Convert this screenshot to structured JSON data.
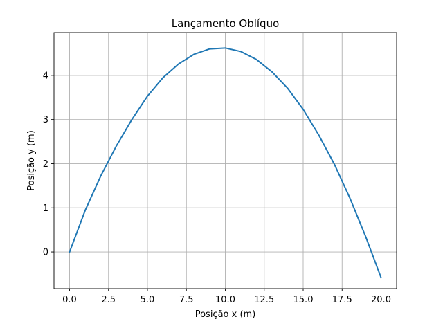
{
  "chart_data": {
    "type": "line",
    "title": "Lançamento Oblíquo",
    "xlabel": "Posição x (m)",
    "ylabel": "Posição y (m)",
    "xlim": [
      -1.0,
      21.0
    ],
    "ylim": [
      -0.83,
      4.97
    ],
    "xticks": [
      0.0,
      2.5,
      5.0,
      7.5,
      10.0,
      12.5,
      15.0,
      17.5,
      20.0
    ],
    "xtick_labels": [
      "0.0",
      "2.5",
      "5.0",
      "7.5",
      "10.0",
      "12.5",
      "15.0",
      "17.5",
      "20.0"
    ],
    "yticks": [
      0,
      1,
      2,
      3,
      4
    ],
    "ytick_labels": [
      "0",
      "1",
      "2",
      "3",
      "4"
    ],
    "grid": true,
    "legend": "none",
    "series": [
      {
        "color": "#1f77b4",
        "x": [
          0,
          1,
          2,
          3,
          4,
          5,
          6,
          7,
          8,
          9,
          10,
          11,
          12,
          13,
          14,
          15,
          16,
          17,
          18,
          19,
          20
        ],
        "y": [
          0.0,
          0.94,
          1.72,
          2.4,
          3.0,
          3.53,
          3.95,
          4.26,
          4.48,
          4.6,
          4.62,
          4.54,
          4.36,
          4.08,
          3.71,
          3.23,
          2.65,
          1.99,
          1.22,
          0.36,
          -0.58
        ]
      }
    ]
  }
}
